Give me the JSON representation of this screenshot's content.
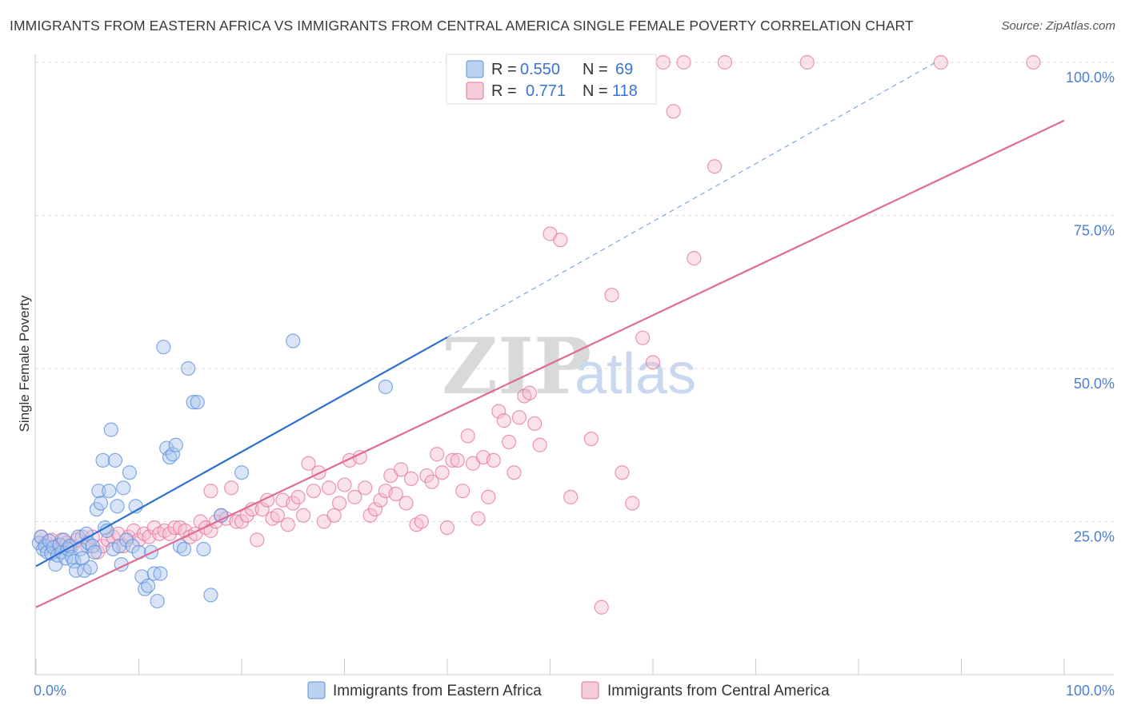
{
  "title": "IMMIGRANTS FROM EASTERN AFRICA VS IMMIGRANTS FROM CENTRAL AMERICA SINGLE FEMALE POVERTY CORRELATION CHART",
  "source": "Source: ZipAtlas.com",
  "watermark": {
    "zip": "ZIP",
    "atlas": "atlas"
  },
  "colors": {
    "blue": "#5b8fdb",
    "blue_fill": "#aac6ee",
    "pink": "#e5749b",
    "pink_fill": "#f5bfd1",
    "tick": "#4a7fd0",
    "grid": "#dddddd"
  },
  "legend": {
    "r_label": "R =",
    "n_label": "N =",
    "series": [
      {
        "r": "0.550",
        "n": "69"
      },
      {
        "r": "0.771",
        "n": "118"
      }
    ]
  },
  "chart_data": {
    "type": "scatter",
    "xlabel": "",
    "ylabel": "Single Female Poverty",
    "xlim": [
      0,
      100
    ],
    "ylim": [
      0,
      100
    ],
    "x_ticks": [
      "0.0%",
      "100.0%"
    ],
    "y_ticks": [
      {
        "value": 25,
        "label": "25.0%"
      },
      {
        "value": 50,
        "label": "50.0%"
      },
      {
        "value": 75,
        "label": "75.0%"
      },
      {
        "value": 100,
        "label": "100.0%"
      }
    ],
    "grid": true,
    "legend_position": "top-center",
    "series": [
      {
        "name": "Immigrants from Eastern Africa",
        "color": "#5b8fdb",
        "trend": {
          "x0": 0,
          "y0": 17.7,
          "x1": 40,
          "y1": 55.1,
          "dashed_to_x": 87.5,
          "dashed_to_y": 100
        },
        "points": [
          [
            0.3,
            21.5
          ],
          [
            0.5,
            22.5
          ],
          [
            0.7,
            20.5
          ],
          [
            0.9,
            21.0
          ],
          [
            1.1,
            20.0
          ],
          [
            1.3,
            21.8
          ],
          [
            1.5,
            19.8
          ],
          [
            1.7,
            20.8
          ],
          [
            1.9,
            18.0
          ],
          [
            2.1,
            19.5
          ],
          [
            2.3,
            21.2
          ],
          [
            2.5,
            20.0
          ],
          [
            2.7,
            22.0
          ],
          [
            2.9,
            19.0
          ],
          [
            3.1,
            20.5
          ],
          [
            3.3,
            21.0
          ],
          [
            3.5,
            19.2
          ],
          [
            3.7,
            18.5
          ],
          [
            3.9,
            17.0
          ],
          [
            4.1,
            22.5
          ],
          [
            4.3,
            20.5
          ],
          [
            4.5,
            19.0
          ],
          [
            4.7,
            17.0
          ],
          [
            4.9,
            23.0
          ],
          [
            5.1,
            21.5
          ],
          [
            5.3,
            17.5
          ],
          [
            5.5,
            21.0
          ],
          [
            5.7,
            20.0
          ],
          [
            5.9,
            27.0
          ],
          [
            6.1,
            30.0
          ],
          [
            6.3,
            28.0
          ],
          [
            6.5,
            35.0
          ],
          [
            6.7,
            24.0
          ],
          [
            6.9,
            23.5
          ],
          [
            7.1,
            30.0
          ],
          [
            7.3,
            40.0
          ],
          [
            7.5,
            20.5
          ],
          [
            7.7,
            35.0
          ],
          [
            7.9,
            27.5
          ],
          [
            8.1,
            21.0
          ],
          [
            8.3,
            18.0
          ],
          [
            8.5,
            30.5
          ],
          [
            8.8,
            22.0
          ],
          [
            9.1,
            33.0
          ],
          [
            9.4,
            21.0
          ],
          [
            9.7,
            27.5
          ],
          [
            10.0,
            20.0
          ],
          [
            10.3,
            16.0
          ],
          [
            10.6,
            14.0
          ],
          [
            10.9,
            14.5
          ],
          [
            11.2,
            20.0
          ],
          [
            11.5,
            16.5
          ],
          [
            11.8,
            12.0
          ],
          [
            12.1,
            16.5
          ],
          [
            12.4,
            53.5
          ],
          [
            12.7,
            37.0
          ],
          [
            13.0,
            35.5
          ],
          [
            13.3,
            36.0
          ],
          [
            13.6,
            37.5
          ],
          [
            14.0,
            21.0
          ],
          [
            14.4,
            20.5
          ],
          [
            14.8,
            50.0
          ],
          [
            15.3,
            44.5
          ],
          [
            15.7,
            44.5
          ],
          [
            16.3,
            20.5
          ],
          [
            17.0,
            13.0
          ],
          [
            18.0,
            26.0
          ],
          [
            20.0,
            33.0
          ],
          [
            25.0,
            54.5
          ],
          [
            34.0,
            47.0
          ]
        ]
      },
      {
        "name": "Immigrants from Central America",
        "color": "#e5749b",
        "trend": {
          "x0": 0,
          "y0": 11.0,
          "x1": 100,
          "y1": 90.5
        },
        "points": [
          [
            0.5,
            22.5
          ],
          [
            1.0,
            21.5
          ],
          [
            1.5,
            22.0
          ],
          [
            2.0,
            21.0
          ],
          [
            2.5,
            22.0
          ],
          [
            3.0,
            21.5
          ],
          [
            3.5,
            21.0
          ],
          [
            4.0,
            22.0
          ],
          [
            4.5,
            22.5
          ],
          [
            5.0,
            21.0
          ],
          [
            5.5,
            22.5
          ],
          [
            6.0,
            20.0
          ],
          [
            6.5,
            21.0
          ],
          [
            7.0,
            22.0
          ],
          [
            7.5,
            22.5
          ],
          [
            8.0,
            23.0
          ],
          [
            8.5,
            21.0
          ],
          [
            9.0,
            22.5
          ],
          [
            9.5,
            23.5
          ],
          [
            10.0,
            22.0
          ],
          [
            10.5,
            23.0
          ],
          [
            11.0,
            22.5
          ],
          [
            11.5,
            24.0
          ],
          [
            12.0,
            23.0
          ],
          [
            12.5,
            23.5
          ],
          [
            13.0,
            23.0
          ],
          [
            13.5,
            24.0
          ],
          [
            14.0,
            24.0
          ],
          [
            14.5,
            23.5
          ],
          [
            15.0,
            22.5
          ],
          [
            15.5,
            23.0
          ],
          [
            16.0,
            25.0
          ],
          [
            16.5,
            24.0
          ],
          [
            17.0,
            23.5
          ],
          [
            17.5,
            25.0
          ],
          [
            18.0,
            26.0
          ],
          [
            18.5,
            25.5
          ],
          [
            19.0,
            30.5
          ],
          [
            19.5,
            25.0
          ],
          [
            20.0,
            25.0
          ],
          [
            20.5,
            26.0
          ],
          [
            21.0,
            27.0
          ],
          [
            21.5,
            22.0
          ],
          [
            22.0,
            27.0
          ],
          [
            22.5,
            28.5
          ],
          [
            23.0,
            25.5
          ],
          [
            23.5,
            26.0
          ],
          [
            24.0,
            28.5
          ],
          [
            24.5,
            24.5
          ],
          [
            25.0,
            28.0
          ],
          [
            25.5,
            29.0
          ],
          [
            26.0,
            26.0
          ],
          [
            26.5,
            34.5
          ],
          [
            27.0,
            30.0
          ],
          [
            27.5,
            33.0
          ],
          [
            28.0,
            25.0
          ],
          [
            28.5,
            30.5
          ],
          [
            29.0,
            26.0
          ],
          [
            29.5,
            28.0
          ],
          [
            30.0,
            31.0
          ],
          [
            30.5,
            35.0
          ],
          [
            31.0,
            29.0
          ],
          [
            31.5,
            35.5
          ],
          [
            32.0,
            30.5
          ],
          [
            32.5,
            26.0
          ],
          [
            33.0,
            27.0
          ],
          [
            33.5,
            28.5
          ],
          [
            34.0,
            30.0
          ],
          [
            34.5,
            32.5
          ],
          [
            35.0,
            29.5
          ],
          [
            35.5,
            33.5
          ],
          [
            36.0,
            28.0
          ],
          [
            36.5,
            32.0
          ],
          [
            37.0,
            24.5
          ],
          [
            37.5,
            25.0
          ],
          [
            38.0,
            32.5
          ],
          [
            38.5,
            31.5
          ],
          [
            39.0,
            36.0
          ],
          [
            39.5,
            33.0
          ],
          [
            40.0,
            24.0
          ],
          [
            40.5,
            35.0
          ],
          [
            41.0,
            35.0
          ],
          [
            41.5,
            30.0
          ],
          [
            42.0,
            39.0
          ],
          [
            42.5,
            34.5
          ],
          [
            43.0,
            25.5
          ],
          [
            43.5,
            35.5
          ],
          [
            44.0,
            29.0
          ],
          [
            44.5,
            35.0
          ],
          [
            45.0,
            43.0
          ],
          [
            45.5,
            41.5
          ],
          [
            46.0,
            38.0
          ],
          [
            46.5,
            33.0
          ],
          [
            47.0,
            42.0
          ],
          [
            47.5,
            45.5
          ],
          [
            48.0,
            46.0
          ],
          [
            48.5,
            41.0
          ],
          [
            49.0,
            37.5
          ],
          [
            50.0,
            72.0
          ],
          [
            51.0,
            71.0
          ],
          [
            52.0,
            29.0
          ],
          [
            54.0,
            38.5
          ],
          [
            55.0,
            11.0
          ],
          [
            56.0,
            62.0
          ],
          [
            57.0,
            33.0
          ],
          [
            58.0,
            28.0
          ],
          [
            59.0,
            55.0
          ],
          [
            60.0,
            51.0
          ],
          [
            61.0,
            100.0
          ],
          [
            62.0,
            92.0
          ],
          [
            63.0,
            100.0
          ],
          [
            64.0,
            68.0
          ],
          [
            66.0,
            83.0
          ],
          [
            67.0,
            100.0
          ],
          [
            75.0,
            100.0
          ],
          [
            88.0,
            100.0
          ],
          [
            97.0,
            100.0
          ],
          [
            17.0,
            30.0
          ]
        ]
      }
    ]
  }
}
